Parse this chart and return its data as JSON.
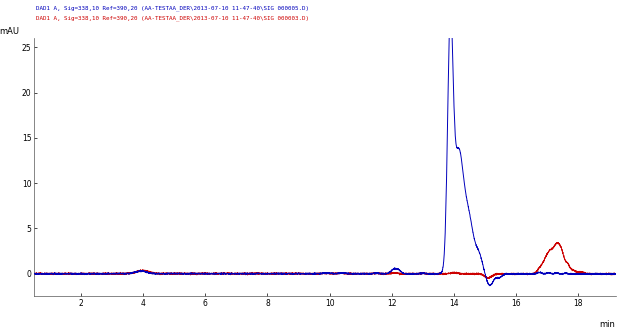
{
  "legend_line1": "DAD1 A, Sig=338,10 Ref=390,20 (AA-TESTAA_DER\\2013-07-10 11-47-40\\SIG 000005.D)",
  "legend_line2": "DAD1 A, Sig=338,10 Ref=390,20 (AA-TESTAA_DER\\2013-07-10 11-47-40\\SIG 000003.D)",
  "legend_color1": "#0000bb",
  "legend_color2": "#cc0000",
  "xlabel": "min",
  "ylabel": "mAU",
  "xlim": [
    0.5,
    19.2
  ],
  "ylim": [
    -2.5,
    26
  ],
  "xticks": [
    2,
    4,
    6,
    8,
    10,
    12,
    14,
    16,
    18
  ],
  "yticks": [
    0,
    5,
    10,
    15,
    20,
    25
  ],
  "background_color": "#ffffff",
  "plot_bg": "#ffffff",
  "line_color_blue": "#0000bb",
  "line_color_red": "#cc0000",
  "linewidth": 0.7
}
